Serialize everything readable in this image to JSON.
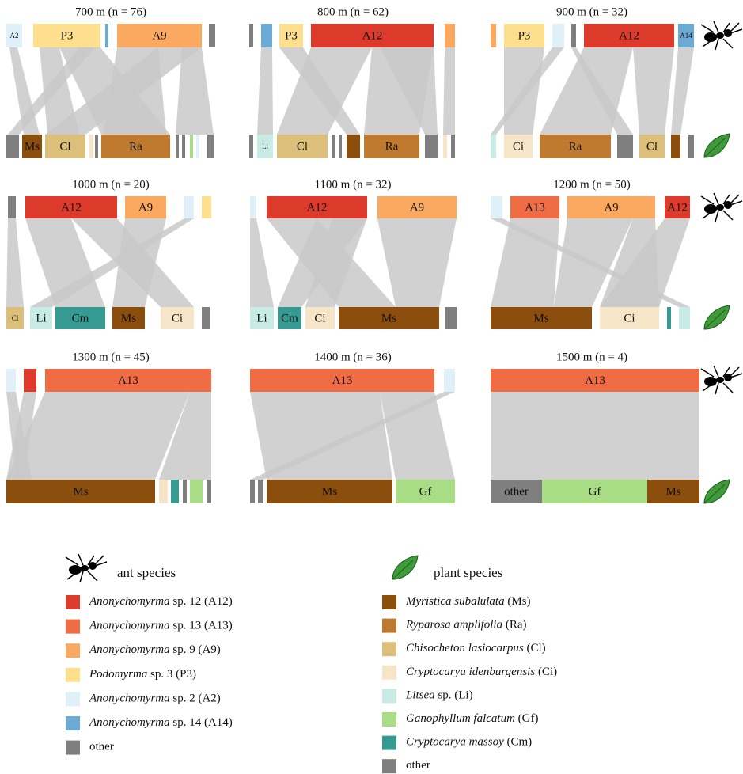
{
  "panels": [
    {
      "title": "700 m (n = 76)",
      "top_labels": [
        "A2",
        "P3",
        "A9"
      ],
      "bottom_labels": [
        "Ms",
        "Cl",
        "Ra"
      ]
    },
    {
      "title": "800 m (n = 62)",
      "top_labels": [
        "P3",
        "A12"
      ],
      "bottom_labels": [
        "Li",
        "Cl",
        "Ra"
      ]
    },
    {
      "title": "900 m (n = 32)",
      "top_labels": [
        "P3",
        "A12",
        "A14"
      ],
      "bottom_labels": [
        "Ci",
        "Ra",
        "Cl"
      ]
    },
    {
      "title": "1000 m (n = 20)",
      "top_labels": [
        "A12",
        "A9"
      ],
      "bottom_labels": [
        "Cl",
        "Li",
        "Cm",
        "Ms",
        "Ci"
      ]
    },
    {
      "title": "1100 m (n = 32)",
      "top_labels": [
        "A12",
        "A9"
      ],
      "bottom_labels": [
        "Li",
        "Cm",
        "Ci",
        "Ms"
      ]
    },
    {
      "title": "1200 m (n = 50)",
      "top_labels": [
        "A13",
        "A9",
        "A12"
      ],
      "bottom_labels": [
        "Ms",
        "Ci"
      ]
    },
    {
      "title": "1300 m (n = 45)",
      "top_labels": [
        "A13"
      ],
      "bottom_labels": [
        "Ms"
      ]
    },
    {
      "title": "1400 m (n = 36)",
      "top_labels": [
        "A13"
      ],
      "bottom_labels": [
        "Ms",
        "Gf"
      ]
    },
    {
      "title": "1500 m (n = 4)",
      "top_labels": [
        "A13"
      ],
      "bottom_labels": [
        "other",
        "Gf",
        "Ms"
      ]
    }
  ],
  "legend_ants": {
    "title": "ant species",
    "items": [
      {
        "italic": "Anonychomyrma",
        "text": " sp. 12 (A12)"
      },
      {
        "italic": "Anonychomyrma",
        "text": " sp. 13 (A13)"
      },
      {
        "italic": "Anonychomyrma",
        "text": " sp. 9 (A9)"
      },
      {
        "italic": "Podomyrma",
        "text": " sp. 3 (P3)"
      },
      {
        "italic": "Anonychomyrma",
        "text": " sp. 2 (A2)"
      },
      {
        "italic": "Anonychomyrma",
        "text": " sp. 14 (A14)"
      },
      {
        "text": "other"
      }
    ]
  },
  "legend_plants": {
    "title": "plant species",
    "items": [
      {
        "italic": "Myristica subalulata",
        "text": " (Ms)"
      },
      {
        "italic": "Ryparosa amplifolia",
        "text": " (Ra)"
      },
      {
        "italic": "Chisocheton lasiocarpus",
        "text": " (Cl)"
      },
      {
        "italic": "Cryptocarya idenburgensis",
        "text": "  (Ci)"
      },
      {
        "italic": "Litsea",
        "text": " sp. (Li)"
      },
      {
        "italic": "Ganophyllum falcatum",
        "text": " (Gf)"
      },
      {
        "italic": "Cryptocarya massoy",
        "text": " (Cm)"
      },
      {
        "text": "other"
      }
    ]
  }
}
